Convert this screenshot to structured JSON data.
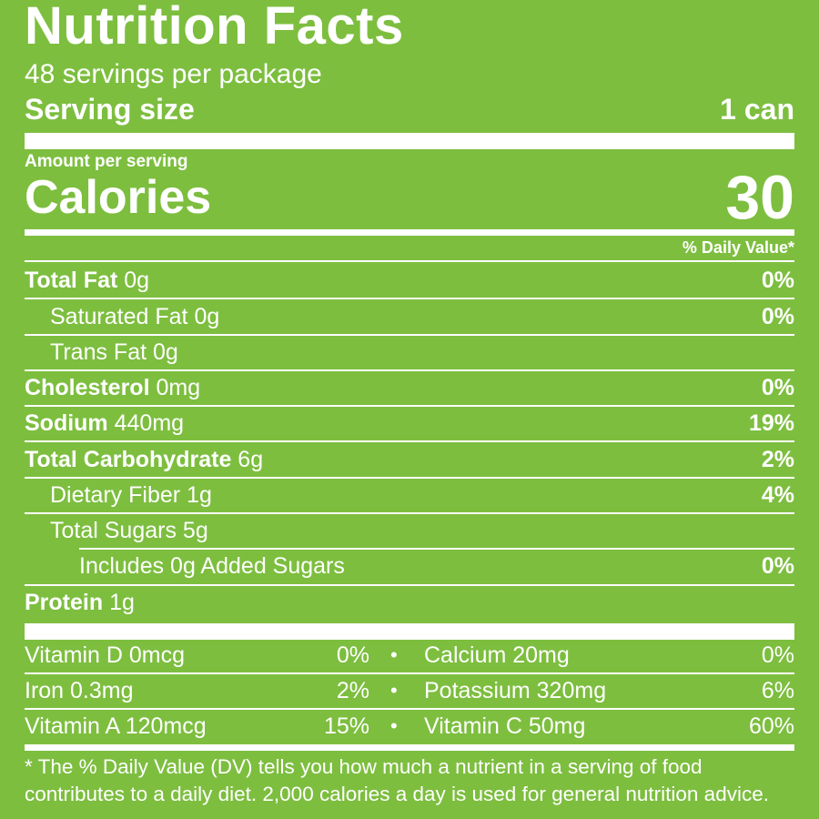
{
  "label": {
    "title": "Nutrition Facts",
    "servings_per_package": "48 servings per package",
    "serving_size_label": "Serving size",
    "serving_size_value": "1 can",
    "amount_per_serving": "Amount per serving",
    "calories_label": "Calories",
    "calories_value": "30",
    "daily_value_header": "% Daily Value*"
  },
  "nutrients": [
    {
      "name": "Total Fat",
      "amount": "0g",
      "dv": "0%"
    },
    {
      "name": "Saturated Fat",
      "amount": "0g",
      "dv": "0%"
    },
    {
      "name": "Trans Fat",
      "amount": "0g",
      "dv": ""
    },
    {
      "name": "Cholesterol",
      "amount": "0mg",
      "dv": "0%"
    },
    {
      "name": "Sodium",
      "amount": "440mg",
      "dv": "19%"
    },
    {
      "name": "Total Carbohydrate",
      "amount": "6g",
      "dv": "2%"
    },
    {
      "name": "Dietary Fiber",
      "amount": "1g",
      "dv": "4%"
    },
    {
      "name": "Total Sugars",
      "amount": "5g",
      "dv": ""
    },
    {
      "name": "Includes 0g Added Sugars",
      "amount": "",
      "dv": "0%"
    },
    {
      "name": "Protein",
      "amount": "1g",
      "dv": ""
    }
  ],
  "vitamins": [
    {
      "left_name": "Vitamin D 0mcg",
      "left_dv": "0%",
      "right_name": "Calcium 20mg",
      "right_dv": "0%"
    },
    {
      "left_name": "Iron 0.3mg",
      "left_dv": "2%",
      "right_name": "Potassium 320mg",
      "right_dv": "6%"
    },
    {
      "left_name": "Vitamin A 120mcg",
      "left_dv": "15%",
      "right_name": "Vitamin C 50mg",
      "right_dv": "60%"
    }
  ],
  "bullet": "•",
  "footnote_line1": "* The % Daily Value (DV) tells you how much a nutrient in a serving of food",
  "footnote_line2": "contributes to a daily diet. 2,000 calories a day is used for general nutrition advice.",
  "colors": {
    "background": "#7dbe3f",
    "text": "#ffffff"
  }
}
